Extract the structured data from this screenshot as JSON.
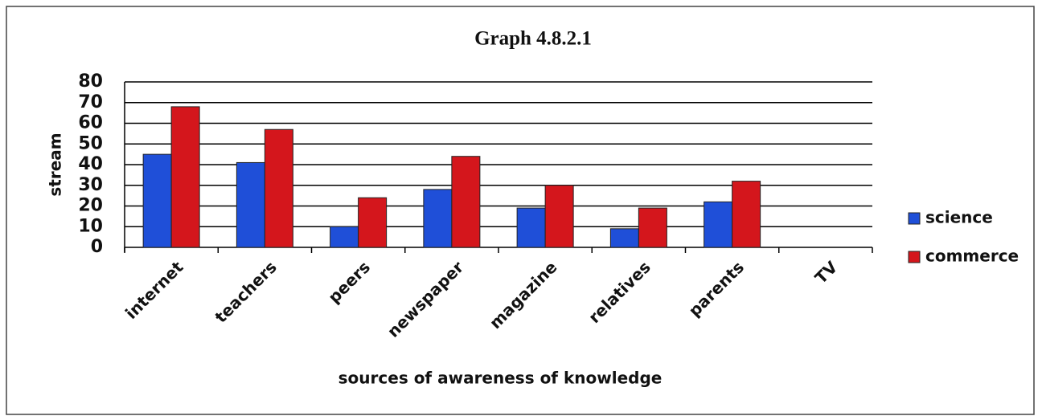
{
  "chart_data": {
    "type": "bar",
    "title": "Graph 4.8.2.1",
    "x_label": "sources of awareness of knowledge",
    "y_label": "stream",
    "categories": [
      "internet",
      "teachers",
      "peers",
      "newspaper",
      "magazine",
      "relatives",
      "parents",
      "TV"
    ],
    "series": [
      {
        "name": "science",
        "color": "#1f4fd8",
        "values": [
          45,
          41,
          10,
          28,
          19,
          9,
          22,
          0
        ]
      },
      {
        "name": "commerce",
        "color": "#d4161c",
        "values": [
          68,
          57,
          24,
          44,
          30,
          19,
          32,
          0
        ]
      }
    ],
    "ylim": [
      0,
      80
    ],
    "yticks": [
      0,
      10,
      20,
      30,
      40,
      50,
      60,
      70,
      80
    ],
    "grid": true,
    "legend": "right"
  }
}
